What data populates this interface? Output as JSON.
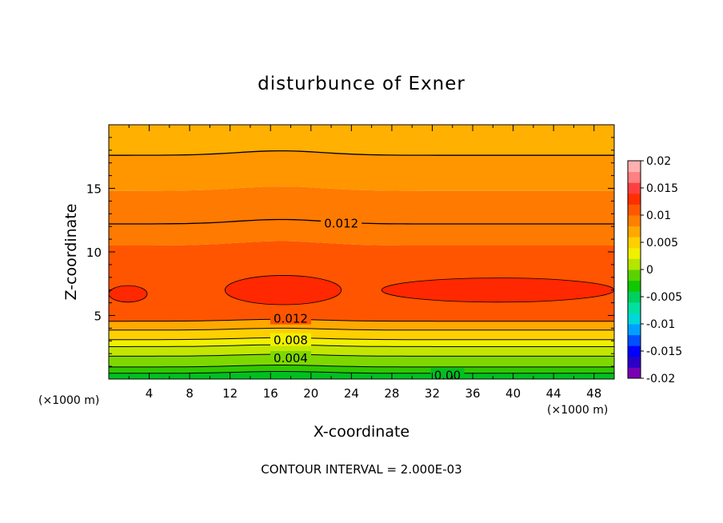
{
  "chart_data": {
    "type": "contour",
    "title": "disturbunce of Exner",
    "xlabel": "X-coordinate",
    "ylabel": "Z-coordinate",
    "x_unit": "(×1000 m)",
    "x_unit_right": "(×1000 m)",
    "xlim": [
      0,
      50
    ],
    "ylim": [
      0,
      20
    ],
    "x_ticks": [
      "4",
      "8",
      "12",
      "16",
      "20",
      "24",
      "28",
      "32",
      "36",
      "40",
      "44",
      "48"
    ],
    "y_ticks": [
      "5",
      "10",
      "15"
    ],
    "footer": "CONTOUR INTERVAL = 2.000E-03",
    "contour_labels": [
      {
        "text": "0.012",
        "x": 23,
        "z": 12.3
      },
      {
        "text": "0.012",
        "x": 18,
        "z": 4.8
      },
      {
        "text": "0.008",
        "x": 18,
        "z": 3.1
      },
      {
        "text": "0.004",
        "x": 18,
        "z": 1.7
      },
      {
        "text": "0.00",
        "x": 33.5,
        "z": 0.35
      }
    ],
    "colorbar": {
      "labels": [
        "0.02",
        "0.015",
        "0.01",
        "0.005",
        "0",
        "-0.005",
        "-0.01",
        "-0.015",
        "-0.02"
      ],
      "levels_colors": [
        "#7a00b4",
        "#2a00c8",
        "#0000ff",
        "#0050ff",
        "#00a0ff",
        "#00d8d8",
        "#00e0a0",
        "#00d060",
        "#10c800",
        "#5ad200",
        "#b4e600",
        "#f0f000",
        "#ffd000",
        "#ffa800",
        "#ff8000",
        "#ff5800",
        "#ff3000",
        "#ff4040",
        "#ff8080",
        "#ffb0b0"
      ]
    },
    "bands": [
      {
        "level": "0.000-0.002",
        "color": "#00c020",
        "z_top": 0.45
      },
      {
        "level": "0.002-0.004",
        "color": "#30c800",
        "z_top": 0.95
      },
      {
        "level": "0.004-0.006",
        "color": "#7ed800",
        "z_top": 1.8
      },
      {
        "level": "0.006-0.008",
        "color": "#c2e600",
        "z_top": 2.55
      },
      {
        "level": "0.008-0.010",
        "color": "#f0f000",
        "z_top": 3.1
      },
      {
        "level": "0.010-0.012",
        "color": "#ffd000",
        "z_top": 3.85
      },
      {
        "level": "0.012-0.014",
        "color": "#ffa800",
        "z_top": 4.55
      },
      {
        "level": "0.014-0.016",
        "color": "#ff5500",
        "z_top": 10.5
      },
      {
        "level": "0.012-0.014",
        "color": "#ff7a00",
        "z_top": 14.8
      },
      {
        "level": "0.010-0.012",
        "color": "#ff9600",
        "z_top": 17.6
      },
      {
        "level": "0.008-0.010",
        "color": "#ffb000",
        "z_top": 20
      }
    ],
    "maxima": [
      {
        "x_range": [
          0,
          3.8
        ],
        "z_center": 6.7,
        "z_half": 0.65
      },
      {
        "x_range": [
          11.5,
          23
        ],
        "z_center": 7.0,
        "z_half": 1.15
      },
      {
        "x_range": [
          27,
          50
        ],
        "z_center": 7.0,
        "z_half": 0.95
      }
    ],
    "contour_lines_z": [
      0.45,
      0.95,
      1.8,
      2.55,
      3.1,
      3.85,
      4.55,
      12.2,
      17.6
    ]
  }
}
